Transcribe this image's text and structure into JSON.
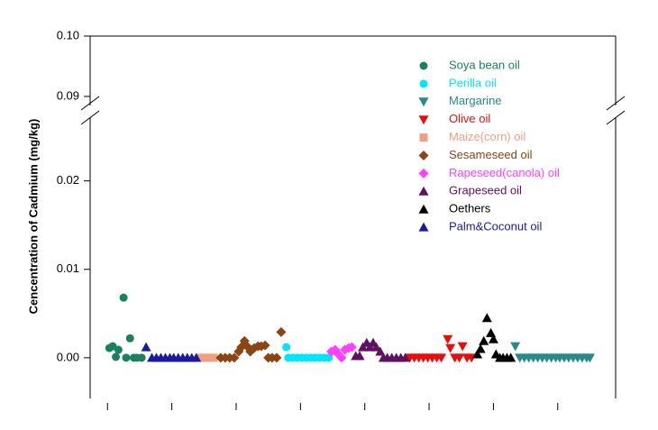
{
  "chart_data": {
    "type": "scatter",
    "y_label": "Cencentration of Cadmium (mg/kg)",
    "ylim": [
      -0.0046,
      0.0272
    ],
    "yticks": [
      {
        "value": 0,
        "label": "0.00"
      },
      {
        "value": 0.01,
        "label": "0.01"
      },
      {
        "value": 0.02,
        "label": "0.02"
      }
    ],
    "y_upper": {
      "ylim": [
        0.0885,
        0.1
      ],
      "yticks": [
        {
          "value": 0.09,
          "label": "0.09"
        },
        {
          "value": 0.1,
          "label": "0.10"
        }
      ]
    },
    "xlim": [
      -0.27,
      7.9
    ],
    "xticks": [
      0,
      1,
      2,
      3,
      4,
      5,
      6,
      7
    ],
    "legend": "upper right",
    "series": [
      {
        "name": "Soya bean oil",
        "color": "#1a8060",
        "marker": "circle",
        "x": [
          0.03,
          0.08,
          0.17,
          0.13,
          0.25,
          0.29,
          0.35,
          0.41,
          0.46,
          0.53
        ],
        "values": [
          0.0011,
          0.0013,
          0.0009,
          0.0001,
          0.0068,
          0,
          0.0022,
          0,
          0,
          0
        ]
      },
      {
        "name": "Perilla oil",
        "color": "#00e5ff",
        "marker": "circle",
        "x": [
          2.78,
          2.81,
          2.88,
          2.95,
          3.02,
          3.09,
          3.16,
          3.23,
          3.3,
          3.37,
          3.44
        ],
        "values": [
          0.0012,
          0,
          0,
          0,
          0,
          0,
          0,
          0,
          0,
          0,
          0
        ]
      },
      {
        "name": "Margarine",
        "color": "#2a8a8a",
        "marker": "triangle-down",
        "x": [
          6.34,
          6.41,
          6.48,
          6.55,
          6.62,
          6.69,
          6.76,
          6.83,
          6.9,
          6.97,
          7.03,
          7.1,
          7.17,
          7.24,
          7.31,
          7.38,
          7.45,
          7.5
        ],
        "values": [
          0.0013,
          0,
          0,
          0,
          0,
          0,
          0,
          0,
          0,
          0,
          0,
          0,
          0,
          0,
          0,
          0,
          0,
          0
        ]
      },
      {
        "name": "Olive oil",
        "color": "#e41010",
        "marker": "triangle-down",
        "x": [
          4.7,
          4.77,
          4.84,
          4.91,
          4.98,
          5.05,
          5.12,
          5.19,
          5.29,
          5.33,
          5.4,
          5.47,
          5.52,
          5.59,
          5.66
        ],
        "values": [
          0,
          0,
          0,
          0,
          0,
          0,
          0,
          0,
          0.0021,
          0.0011,
          0,
          0,
          0.0013,
          0,
          0
        ]
      },
      {
        "name": "Maize(corn) oil",
        "color": "#f0a080",
        "marker": "square",
        "x": [
          1.44,
          1.51,
          1.58,
          1.65
        ],
        "values": [
          0,
          0,
          0,
          0
        ]
      },
      {
        "name": "Sesameseed oil",
        "color": "#8b4513",
        "marker": "diamond",
        "x": [
          1.76,
          1.83,
          1.9,
          1.97,
          2.04,
          2.08,
          2.13,
          2.17,
          2.22,
          2.28,
          2.34,
          2.39,
          2.45,
          2.5,
          2.56,
          2.63,
          2.7
        ],
        "values": [
          0,
          0,
          0,
          0,
          0.0007,
          0.0012,
          0.0019,
          0.0013,
          0.0007,
          0.0011,
          0.0013,
          0.0013,
          0.0014,
          0,
          0,
          0,
          0.0029
        ]
      },
      {
        "name": "Rapeseed(canola) oil",
        "color": "#ff40ff",
        "marker": "diamond",
        "x": [
          3.48,
          3.54,
          3.59,
          3.64,
          3.69,
          3.75,
          3.8
        ],
        "values": [
          0.0007,
          0.0009,
          0.0004,
          0,
          0.0009,
          0.0011,
          0.0012
        ]
      },
      {
        "name": "Grapeseed oil",
        "color": "#601060",
        "marker": "triangle",
        "x": [
          3.86,
          3.92,
          3.97,
          4.03,
          4.08,
          4.13,
          4.18,
          4.24,
          4.29,
          4.35,
          4.42,
          4.49,
          4.56,
          4.63
        ],
        "values": [
          0.0002,
          0.0002,
          0.0012,
          0.0017,
          0.0012,
          0.0017,
          0.0012,
          0.0007,
          0,
          0,
          0,
          0,
          0,
          0
        ]
      },
      {
        "name": "Oethers",
        "color": "#000000",
        "marker": "triangle",
        "x": [
          5.75,
          5.8,
          5.85,
          5.9,
          5.96,
          6.0,
          6.04,
          6.1,
          6.15,
          6.21,
          6.27
        ],
        "values": [
          0.0004,
          0.001,
          0.0019,
          0.0045,
          0.0028,
          0.0021,
          0.0004,
          0,
          0,
          0,
          0
        ]
      },
      {
        "name": "Palm&Coconut oil",
        "color": "#1a1aa0",
        "marker": "triangle",
        "x": [
          0.6,
          0.69,
          0.76,
          0.83,
          0.9,
          0.97,
          1.03,
          1.1,
          1.17,
          1.24,
          1.31,
          1.38
        ],
        "values": [
          0.0012,
          0,
          0,
          0,
          0,
          0,
          0,
          0,
          0,
          0,
          0,
          0
        ]
      }
    ]
  }
}
